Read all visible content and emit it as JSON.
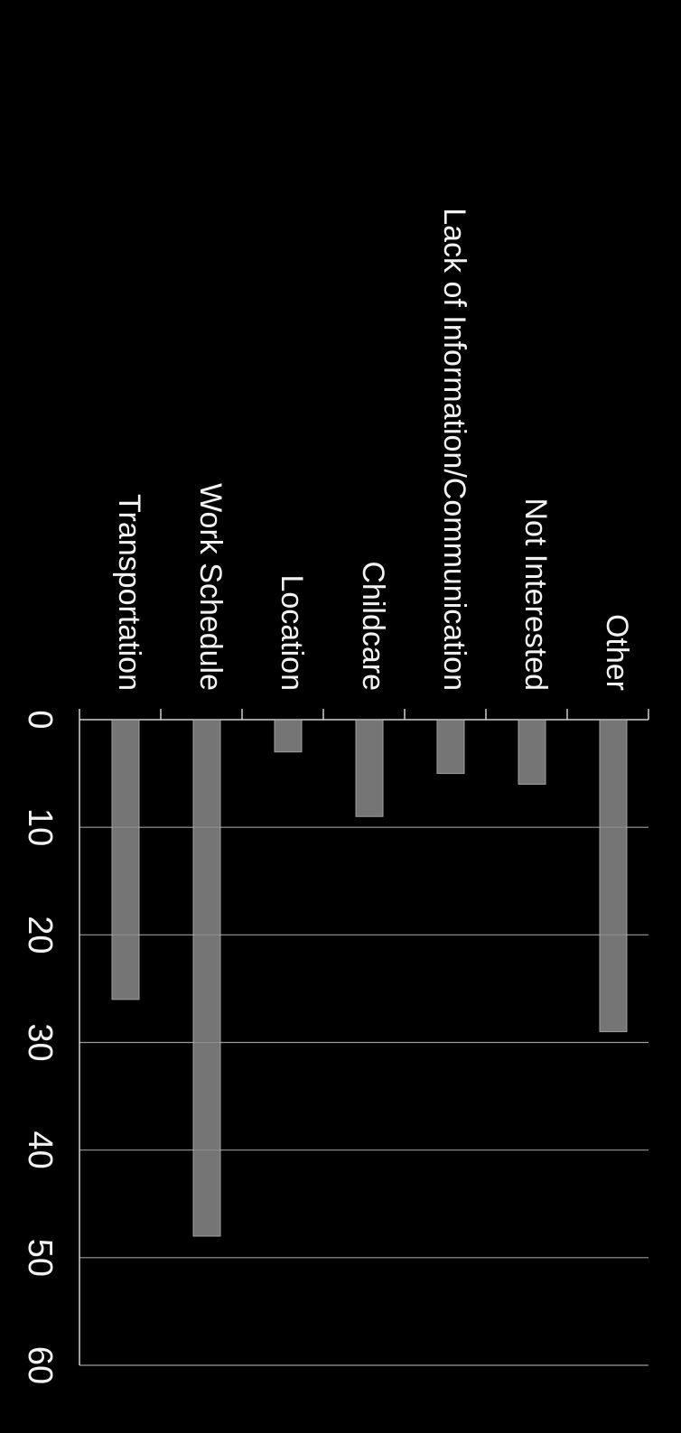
{
  "chart_data": {
    "type": "bar",
    "orientation": "horizontal",
    "rotated": "90deg clockwise",
    "categories": [
      "Other",
      "Not Interested",
      "Lack of Information/Communication",
      "Childcare",
      "Location",
      "Work Schedule",
      "Transportation"
    ],
    "values": [
      29,
      6,
      5,
      9,
      3,
      48,
      26
    ],
    "xlim": [
      0,
      60
    ],
    "xticks": [
      "0",
      "10",
      "20",
      "30",
      "40",
      "50",
      "60"
    ],
    "grid": true,
    "title": "",
    "xlabel": "",
    "ylabel": ""
  },
  "colors": {
    "background": "#000000",
    "bar": "#8a8a8a",
    "bar_edge": "#bdbdbd",
    "grid": "#9a9a9a",
    "axis": "#d0d0d0",
    "text": "#f2f2f2"
  }
}
